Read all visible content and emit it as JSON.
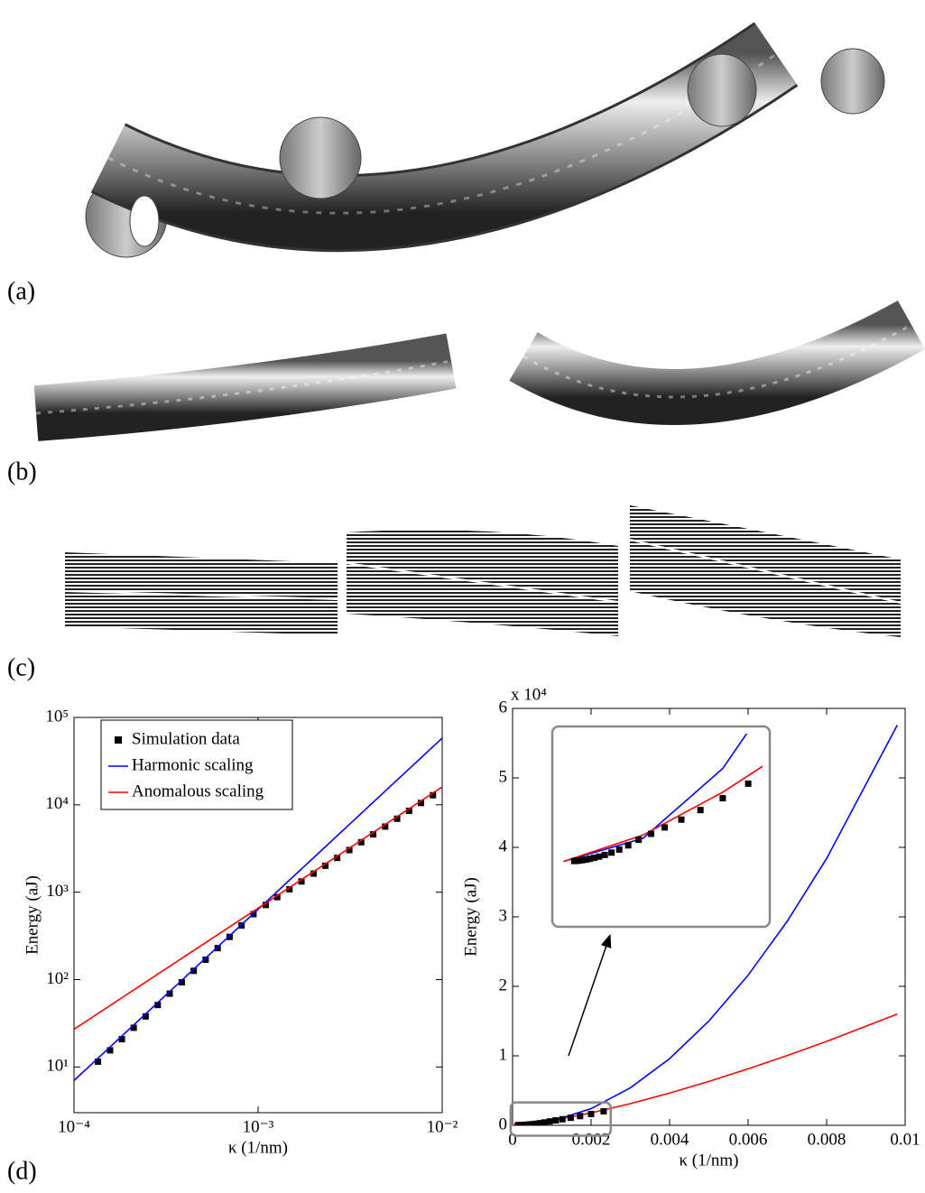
{
  "panel_labels": [
    "(a)",
    "(b)",
    "(c)",
    "(d)"
  ],
  "chart_data": [
    {
      "type": "line",
      "log_x": true,
      "log_y": true,
      "xlabel": "κ (1/nm)",
      "ylabel": "Energy (aJ)",
      "xlim": [
        0.0001,
        0.01
      ],
      "ylim": [
        3,
        100000
      ],
      "xticks": [
        {
          "value": 0.0001,
          "label": "10⁻⁴"
        },
        {
          "value": 0.001,
          "label": "10⁻³"
        },
        {
          "value": 0.01,
          "label": "10⁻²"
        }
      ],
      "yticks": [
        {
          "value": 10,
          "label": "10¹"
        },
        {
          "value": 100,
          "label": "10²"
        },
        {
          "value": 1000,
          "label": "10³"
        },
        {
          "value": 10000,
          "label": "10⁴"
        },
        {
          "value": 100000,
          "label": "10⁵"
        }
      ],
      "legend": "upper left",
      "series": [
        {
          "name": "Simulation data",
          "color": "#000000",
          "style": "markers",
          "x": [
            0.000135,
            0.000157,
            0.000182,
            0.000211,
            0.000245,
            0.000285,
            0.000331,
            0.000385,
            0.000447,
            0.000519,
            0.000603,
            0.0007,
            0.000813,
            0.000944,
            0.0011,
            0.00127,
            0.00148,
            0.00172,
            0.002,
            0.00232,
            0.00269,
            0.00313,
            0.00363,
            0.00422,
            0.0049,
            0.00569,
            0.00661,
            0.00767,
            0.00891
          ],
          "values": [
            11.5,
            15.5,
            20.8,
            28.1,
            37.9,
            51.2,
            69,
            93.1,
            126,
            169,
            229,
            308,
            416,
            561,
            714,
            879,
            1081,
            1328,
            1633,
            2009,
            2466,
            3034,
            3733,
            4592,
            5636,
            6935,
            8531,
            10495,
            12882
          ]
        },
        {
          "name": "Harmonic scaling",
          "color": "#0000ff",
          "style": "line",
          "x": [
            0.0001,
            0.01
          ],
          "values": [
            7,
            58000
          ]
        },
        {
          "name": "Anomalous scaling",
          "color": "#ff0000",
          "style": "line",
          "x": [
            0.0001,
            0.01
          ],
          "values": [
            27,
            16000
          ]
        }
      ]
    },
    {
      "type": "line",
      "log_x": false,
      "log_y": false,
      "xlabel": "κ (1/nm)",
      "ylabel": "Energy (aJ)",
      "xlim": [
        0,
        0.01
      ],
      "ylim": [
        0,
        60000
      ],
      "xticks": [
        0,
        0.002,
        0.004,
        0.006,
        0.008,
        0.01
      ],
      "yticks": [
        0,
        {
          "value": 10000,
          "label": "1"
        },
        {
          "value": 20000,
          "label": "2"
        },
        {
          "value": 30000,
          "label": "3"
        },
        {
          "value": 40000,
          "label": "4"
        },
        {
          "value": 50000,
          "label": "5"
        },
        {
          "value": 60000,
          "label": "6"
        }
      ],
      "y_multiplier": "x 10⁴",
      "inset": true,
      "series": [
        {
          "color": "#0000ff",
          "style": "line",
          "x": [
            0,
            0.001,
            0.002,
            0.003,
            0.004,
            0.005,
            0.006,
            0.007,
            0.008,
            0.0098
          ],
          "values": [
            0,
            600,
            2400,
            5400,
            9600,
            15000,
            21600,
            29400,
            38400,
            57600
          ]
        },
        {
          "color": "#ff0000",
          "style": "line",
          "x": [
            0,
            0.001,
            0.002,
            0.003,
            0.004,
            0.005,
            0.006,
            0.007,
            0.008,
            0.0098
          ],
          "values": [
            0,
            683,
            1790,
            3120,
            4640,
            6320,
            8130,
            10050,
            12080,
            16000
          ]
        },
        {
          "color": "#000000",
          "style": "markers",
          "x": [
            0.000135,
            0.000157,
            0.000182,
            0.000211,
            0.000245,
            0.000285,
            0.000331,
            0.000385,
            0.000447,
            0.000519,
            0.000603,
            0.0007,
            0.000813,
            0.000944,
            0.0011,
            0.00127,
            0.00148,
            0.00172,
            0.002,
            0.00232
          ],
          "values": [
            11.5,
            15.5,
            20.8,
            28.1,
            37.9,
            51.2,
            69,
            93.1,
            126,
            169,
            229,
            308,
            416,
            561,
            714,
            879,
            1081,
            1328,
            1633,
            2009
          ]
        }
      ]
    }
  ]
}
